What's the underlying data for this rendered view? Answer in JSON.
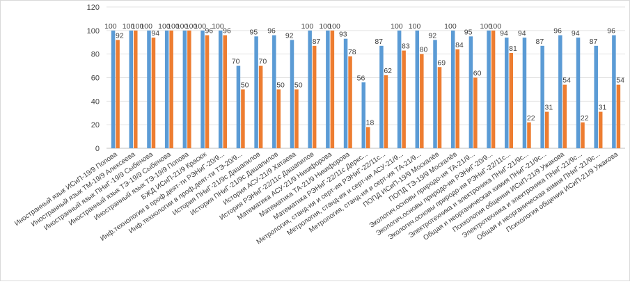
{
  "chart_data": {
    "type": "bar",
    "title": "",
    "xlabel": "",
    "ylabel": "",
    "ylim": [
      0,
      120
    ],
    "yticks": [
      0,
      20,
      40,
      60,
      80,
      100,
      120
    ],
    "grid": true,
    "legend": "none",
    "categories": [
      "Иностранный язык ИСиП-19/9 Попова",
      "Иностранный язык ТМ-19/9 Алексеева",
      "Иностранный язык ПНиГ-19/9 Сыбенова",
      "Иностранный язык ТЭ-19/9 Сыбенова",
      "Иностранный язык ТЭ-19/9 Попова",
      "БЖД ИСиП-21/9 Красюк",
      "Инф.технологии в проф.деят-ти РЭНиГ-20/9...",
      "Инф.технологии в проф.деят-ти ТЭ-20/9...",
      "История ПНиГ-21/9с Дашапилов",
      "История ПНиГ-21/9с Дашапилов",
      "История АСУ-21/9 Хатаева",
      "История РЭНиГ-22/11с Дашапилов",
      "Математика АСУ-21/9 Никифорова",
      "Математика ТА-21/9 Никифорова",
      "Математика РЭНиГ-22/11с Деркс...",
      "Метрология, станд-ия и серт-ия РЭНиГ-22/11с...",
      "Метрология, станд-ия и серт-ия АСУ-21/9...",
      "Метрология, станд-ия и серт-ия ТА-21/9...",
      "ПОПД ИСиП-19/9 Москалёв",
      "ПОПД ТЭ-19/9 Москалёв",
      "Экологич.основы природо-ия ТА-21/9...",
      "Экологич.основы природо-ия РЭНиГ-20/9...",
      "Экологич.основы природо-ия РЭНиГ-22/11с...",
      "Электротехника и электроника ПНиГ-21/9с...",
      "Общая и неорганическая химия ПНиГ-21/9с...",
      "Психология общения ИСиП-21/9 Ужакова",
      "Электротехника и электроника ПНиГ-21/9с...",
      "Общая и неорганическая химия ПНиГ-21/9с...",
      "Психология общения ИСиП-21/9 Ужакова"
    ],
    "series": [
      {
        "color": "#5b9bd5",
        "values": [
          100,
          100,
          100,
          100,
          100,
          100,
          100,
          70,
          95,
          96,
          92,
          100,
          100,
          93,
          56,
          87,
          100,
          100,
          92,
          100,
          95,
          100,
          94,
          94,
          87,
          96,
          94,
          87,
          96
        ]
      },
      {
        "color": "#ed7d31",
        "values": [
          92,
          100,
          94,
          100,
          100,
          96,
          96,
          50,
          70,
          50,
          50,
          87,
          100,
          78,
          18,
          62,
          83,
          80,
          69,
          84,
          60,
          100,
          81,
          22,
          31,
          54,
          22,
          31,
          54
        ]
      }
    ]
  }
}
